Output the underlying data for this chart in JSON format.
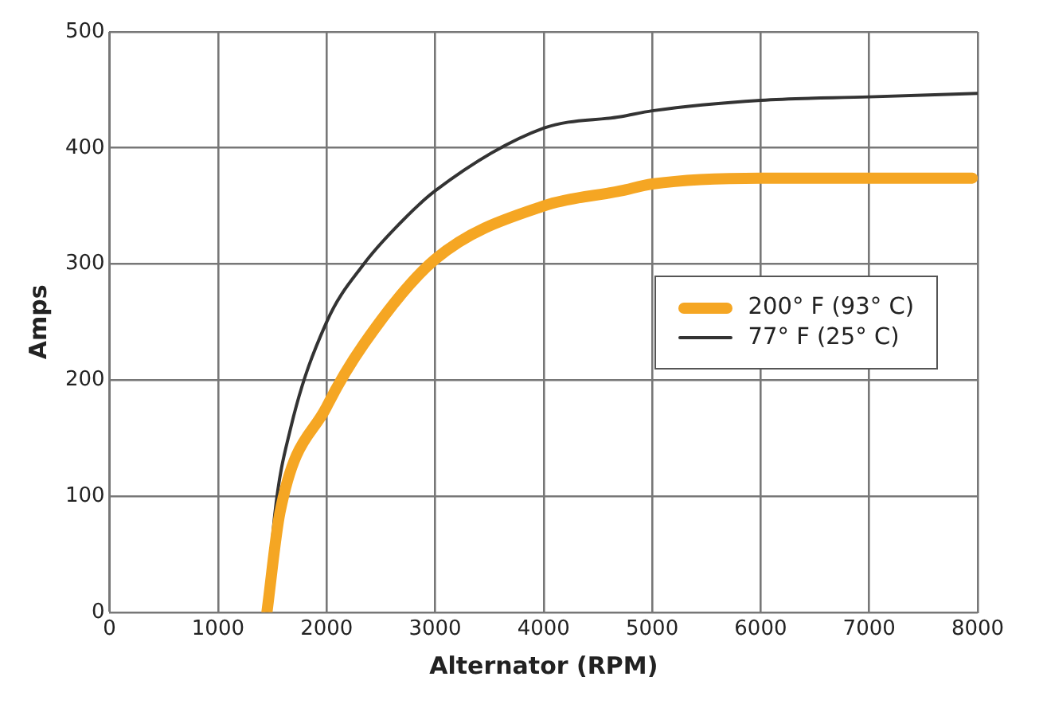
{
  "chart_data": {
    "type": "line",
    "xlabel": "Alternator (RPM)",
    "ylabel": "Amps",
    "xlim": [
      0,
      8000
    ],
    "xticks": [
      0,
      1000,
      2000,
      3000,
      4000,
      5000,
      6000,
      7000,
      8000
    ],
    "ylim": [
      0,
      500
    ],
    "yticks": [
      0,
      100,
      200,
      300,
      400,
      500
    ],
    "grid": true,
    "legend": "right",
    "marker": "none",
    "series": [
      {
        "name": "200° F (93° C)",
        "color": "#f5a623",
        "x": [
          1450,
          1570,
          2000,
          2343,
          3000,
          4000,
          4710,
          5000,
          6000,
          7000,
          7950
        ],
        "values": [
          0,
          86,
          177,
          231,
          304,
          350,
          363,
          369,
          374,
          374,
          374
        ]
      },
      {
        "name": "77° F (25° C)",
        "color": "#333333",
        "x": [
          1450,
          1522,
          1667,
          2000,
          2343,
          2633,
          3000,
          4000,
          4710,
          5000,
          6000,
          7000,
          8000
        ],
        "values": [
          0,
          84,
          158,
          250,
          300,
          331,
          363,
          417,
          427,
          432,
          441,
          444,
          447
        ]
      }
    ]
  }
}
